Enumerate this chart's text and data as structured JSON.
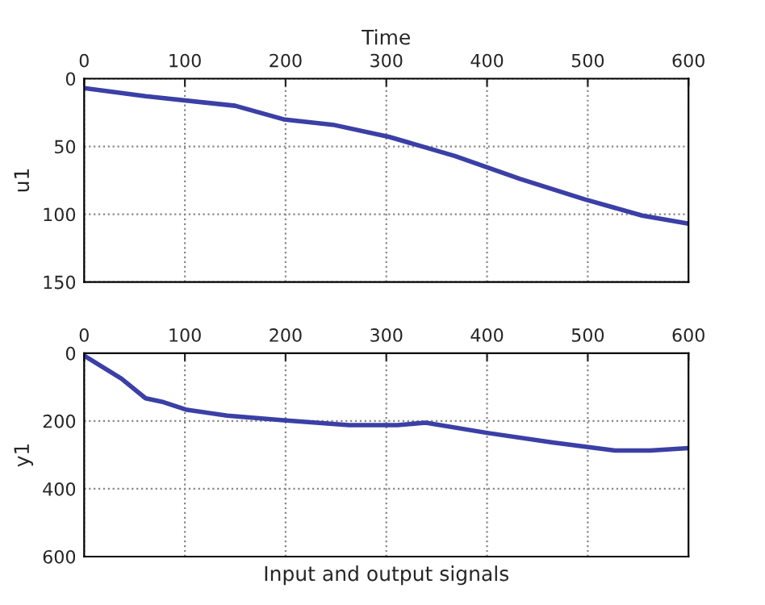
{
  "chart_data": [
    {
      "type": "line",
      "xlabel": "Time",
      "ylabel": "u1",
      "xlim": [
        0,
        600
      ],
      "xticks": [
        0,
        100,
        200,
        300,
        400,
        500,
        600
      ],
      "ylim": [
        150,
        0
      ],
      "yticks": [
        0,
        50,
        100,
        150
      ],
      "grid": true,
      "line_style": "solid",
      "series": [
        {
          "color": "#3b3fa6",
          "x": [
            0,
            61,
            150,
            198,
            247,
            303,
            368,
            433,
            497,
            554,
            600
          ],
          "values": [
            7,
            13,
            20,
            30,
            34,
            43,
            57,
            74,
            89,
            101,
            107
          ]
        }
      ]
    },
    {
      "type": "line",
      "xlabel": "Input and output signals",
      "ylabel": "y1",
      "xlim": [
        0,
        600
      ],
      "xticks": [
        0,
        100,
        200,
        300,
        400,
        500,
        600
      ],
      "ylim": [
        600,
        0
      ],
      "yticks": [
        0,
        200,
        400,
        600
      ],
      "grid": true,
      "line_style": "solid",
      "series": [
        {
          "color": "#3b3fa6",
          "x": [
            0,
            37,
            61,
            77,
            102,
            142,
            198,
            263,
            311,
            339,
            400,
            465,
            527,
            562,
            600
          ],
          "values": [
            7,
            75,
            133,
            143,
            167,
            184,
            198,
            212,
            212,
            205,
            235,
            263,
            287,
            287,
            280
          ]
        }
      ]
    }
  ]
}
